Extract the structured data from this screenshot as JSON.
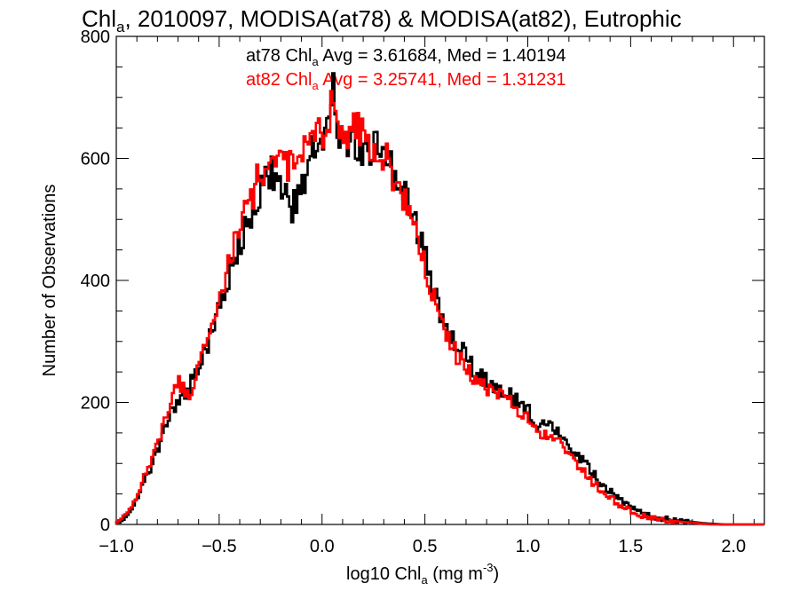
{
  "chart_data": {
    "type": "line",
    "title": {
      "pre": "Chl",
      "sub": "a",
      "post": ", 2010097, MODISA(at78) & MODISA(at82), Eutrophic"
    },
    "xlabel": {
      "pre": "log10 Chl",
      "sub": "a",
      "mid": " (mg m",
      "sup": "-3",
      "post": ")"
    },
    "ylabel": "Number of Observations",
    "xlim": [
      -1.0,
      2.15
    ],
    "ylim": [
      0,
      800
    ],
    "x_ticks": [
      {
        "value": -1.0,
        "label": "−1.0"
      },
      {
        "value": -0.5,
        "label": "−0.5"
      },
      {
        "value": 0.0,
        "label": "0.0"
      },
      {
        "value": 0.5,
        "label": "0.5"
      },
      {
        "value": 1.0,
        "label": "1.0"
      },
      {
        "value": 1.5,
        "label": "1.5"
      },
      {
        "value": 2.0,
        "label": "2.0"
      }
    ],
    "y_ticks": [
      {
        "value": 0,
        "label": "0"
      },
      {
        "value": 200,
        "label": "200"
      },
      {
        "value": 400,
        "label": "400"
      },
      {
        "value": 600,
        "label": "600"
      },
      {
        "value": 800,
        "label": "800"
      }
    ],
    "annotations": [
      {
        "pre": "at78 Chl",
        "sub": "a",
        "post": " Avg = 3.61684, Med = 1.40194",
        "color": "#000000"
      },
      {
        "pre": "at82 Chl",
        "sub": "a",
        "post": " Avg = 3.25741, Med = 1.31231",
        "color": "#ff0000"
      }
    ],
    "bin_width": 0.01,
    "series": [
      {
        "color": "#000000",
        "x": [
          -1.0,
          -0.95,
          -0.9,
          -0.85,
          -0.8,
          -0.75,
          -0.7,
          -0.65,
          -0.6,
          -0.55,
          -0.5,
          -0.45,
          -0.4,
          -0.35,
          -0.3,
          -0.25,
          -0.2,
          -0.15,
          -0.1,
          -0.05,
          0.0,
          0.03,
          0.05,
          0.07,
          0.1,
          0.15,
          0.2,
          0.25,
          0.3,
          0.35,
          0.4,
          0.45,
          0.5,
          0.55,
          0.6,
          0.65,
          0.7,
          0.75,
          0.8,
          0.85,
          0.9,
          0.95,
          1.0,
          1.05,
          1.1,
          1.15,
          1.2,
          1.25,
          1.3,
          1.35,
          1.4,
          1.45,
          1.5,
          1.55,
          1.6,
          1.65,
          1.7,
          1.75,
          1.8,
          1.85,
          1.9,
          1.95,
          2.0,
          2.05,
          2.1
        ],
        "y": [
          2,
          15,
          40,
          80,
          120,
          170,
          205,
          225,
          255,
          300,
          355,
          410,
          460,
          505,
          540,
          575,
          560,
          510,
          555,
          610,
          640,
          660,
          735,
          670,
          620,
          640,
          600,
          620,
          620,
          580,
          560,
          500,
          440,
          370,
          330,
          300,
          275,
          250,
          235,
          225,
          215,
          200,
          190,
          160,
          165,
          150,
          130,
          110,
          90,
          70,
          55,
          40,
          28,
          18,
          14,
          10,
          8,
          6,
          4,
          2,
          1,
          0,
          0,
          0,
          0
        ]
      },
      {
        "color": "#ff0000",
        "x": [
          -1.0,
          -0.95,
          -0.9,
          -0.85,
          -0.8,
          -0.75,
          -0.7,
          -0.65,
          -0.6,
          -0.55,
          -0.5,
          -0.45,
          -0.4,
          -0.35,
          -0.3,
          -0.25,
          -0.2,
          -0.15,
          -0.1,
          -0.05,
          0.0,
          0.03,
          0.05,
          0.07,
          0.1,
          0.15,
          0.2,
          0.25,
          0.3,
          0.35,
          0.4,
          0.45,
          0.5,
          0.55,
          0.6,
          0.65,
          0.7,
          0.75,
          0.8,
          0.85,
          0.9,
          0.95,
          1.0,
          1.05,
          1.1,
          1.15,
          1.2,
          1.25,
          1.3,
          1.35,
          1.4,
          1.45,
          1.5,
          1.55,
          1.6,
          1.65,
          1.7,
          1.75,
          1.8,
          1.85,
          1.9,
          1.95,
          2.0,
          2.05,
          2.1
        ],
        "y": [
          3,
          18,
          45,
          90,
          130,
          180,
          235,
          215,
          250,
          310,
          370,
          430,
          480,
          530,
          575,
          600,
          590,
          585,
          600,
          640,
          640,
          650,
          705,
          640,
          630,
          650,
          640,
          620,
          610,
          560,
          540,
          480,
          420,
          360,
          320,
          280,
          260,
          235,
          220,
          215,
          205,
          190,
          170,
          145,
          150,
          135,
          115,
          95,
          75,
          58,
          45,
          32,
          22,
          15,
          11,
          8,
          6,
          4,
          3,
          1,
          0,
          0,
          0,
          0,
          0
        ]
      }
    ]
  }
}
